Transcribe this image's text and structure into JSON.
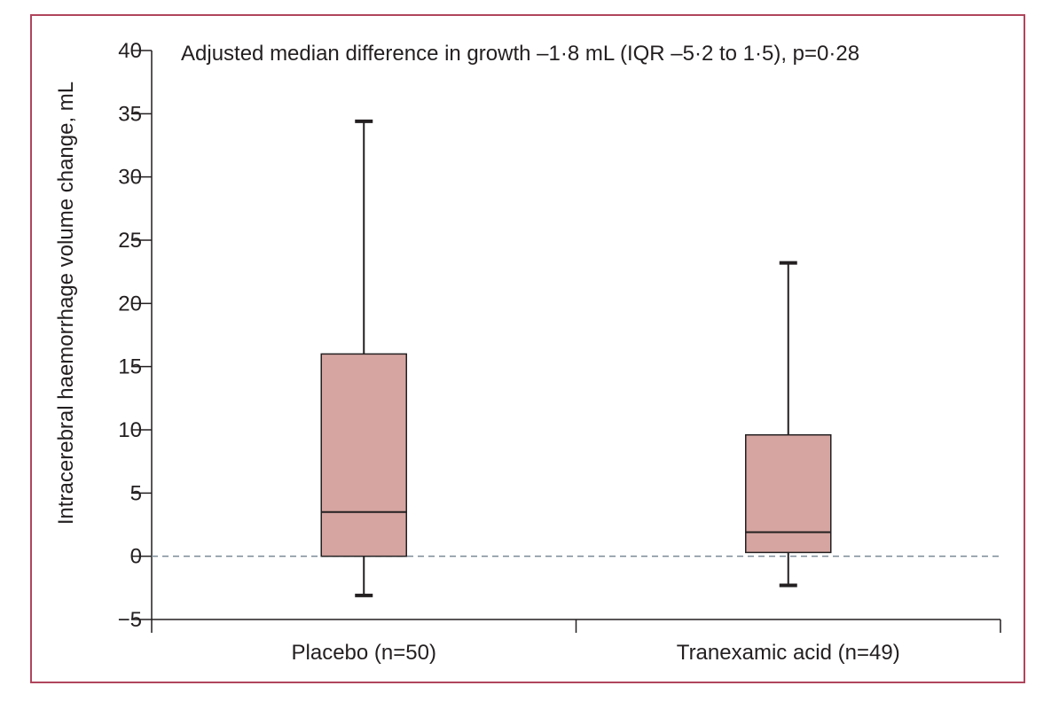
{
  "chart_data": {
    "type": "box",
    "title": "",
    "annotation": "Adjusted median difference in growth –1·8 mL (IQR –5·2 to 1·5), p=0·28",
    "xlabel": "",
    "ylabel": "Intracerebral haemorrhage volume change, mL",
    "ylim": [
      -5,
      40
    ],
    "yticks": [
      40,
      35,
      30,
      25,
      20,
      15,
      10,
      5,
      0,
      -5
    ],
    "ytick_labels": [
      "40",
      "35",
      "30",
      "25",
      "20",
      "15",
      "10",
      "5",
      "0",
      "−5"
    ],
    "reference_line": 0,
    "grid": false,
    "categories": [
      "Placebo (n=50)",
      "Tranexamic acid (n=49)"
    ],
    "boxes": [
      {
        "category": "Placebo (n=50)",
        "whisker_low": -3.1,
        "q1": 0,
        "median": 3.5,
        "q3": 16.0,
        "whisker_high": 34.4
      },
      {
        "category": "Tranexamic acid (n=49)",
        "whisker_low": -2.3,
        "q1": 0.3,
        "median": 1.9,
        "q3": 9.6,
        "whisker_high": 23.2
      }
    ],
    "colors": {
      "box_fill": "#d6a5a1",
      "frame": "#b0455c",
      "ink": "#231f20",
      "reference": "#7b8b96"
    }
  }
}
